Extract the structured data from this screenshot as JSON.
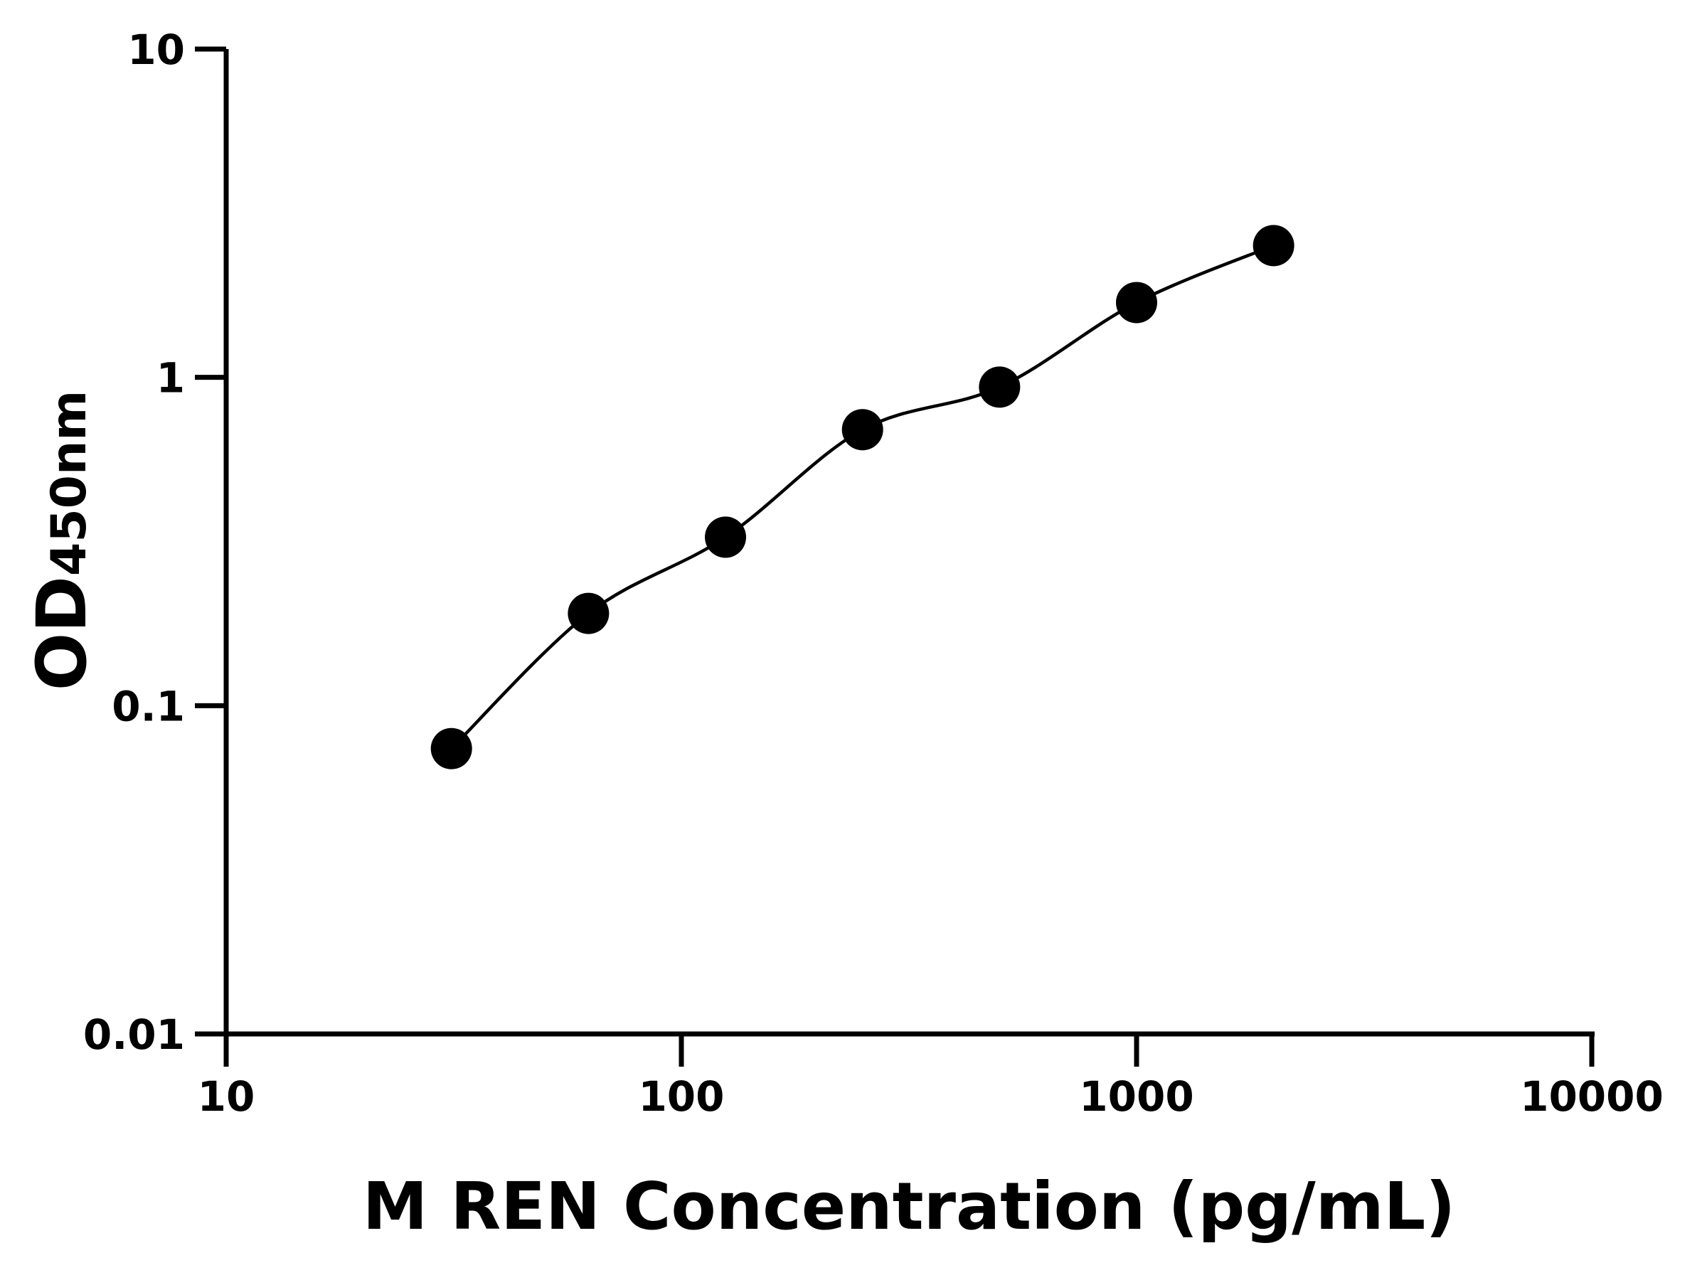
{
  "chart_data": {
    "type": "scatter",
    "title": "",
    "xlabel": "M REN Concentration (pg/mL)",
    "ylabel_main": "OD",
    "ylabel_sub": "450nm",
    "xscale": "log",
    "yscale": "log",
    "xlim": [
      10,
      10000
    ],
    "ylim": [
      0.01,
      10
    ],
    "xticks": [
      "10",
      "100",
      "1000",
      "10000"
    ],
    "yticks": [
      "0.01",
      "0.1",
      "1",
      "10"
    ],
    "grid": false,
    "fit_curve": true,
    "colors": {
      "points": "#000000",
      "curve": "#000000",
      "axes": "#000000"
    },
    "series": [
      {
        "x": [
          31.25,
          62.5,
          125,
          250,
          500,
          1000,
          2000
        ],
        "y": [
          0.074,
          0.191,
          0.326,
          0.693,
          0.934,
          1.69,
          2.52
        ]
      }
    ]
  }
}
